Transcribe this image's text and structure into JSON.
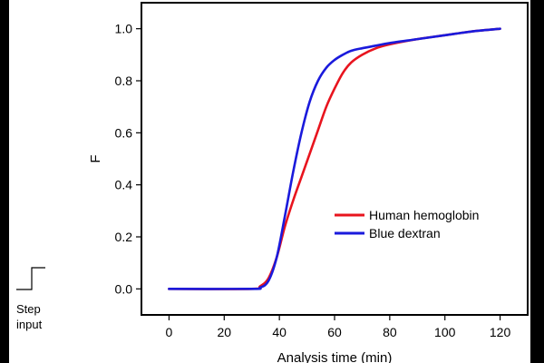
{
  "chart_data": {
    "type": "line",
    "title": "",
    "xlabel": "Analysis time (min)",
    "ylabel": "F",
    "xlim": [
      -10,
      130
    ],
    "ylim": [
      -0.1,
      1.1
    ],
    "xticks": [
      0,
      20,
      40,
      60,
      80,
      100,
      120
    ],
    "yticks": [
      0.0,
      0.2,
      0.4,
      0.6,
      0.8,
      1.0
    ],
    "xtick_labels": [
      "0",
      "20",
      "40",
      "60",
      "80",
      "100",
      "120"
    ],
    "ytick_labels": [
      "0.0",
      "0.2",
      "0.4",
      "0.6",
      "0.8",
      "1.0"
    ],
    "grid": false,
    "legend": "center-right",
    "series": [
      {
        "name": "Human hemoglobin",
        "color": "#e8141e",
        "x": [
          0,
          30,
          33,
          36,
          39,
          42,
          45,
          48,
          51,
          54,
          57,
          60,
          63,
          66,
          70,
          75,
          80,
          90,
          100,
          110,
          120
        ],
        "y": [
          0,
          0,
          0.01,
          0.04,
          0.12,
          0.24,
          0.34,
          0.43,
          0.52,
          0.61,
          0.7,
          0.77,
          0.83,
          0.87,
          0.9,
          0.925,
          0.94,
          0.96,
          0.975,
          0.99,
          1.0
        ]
      },
      {
        "name": "Blue dextran",
        "color": "#1a1adc",
        "x": [
          0,
          30,
          33,
          36,
          39,
          42,
          45,
          48,
          51,
          54,
          57,
          60,
          63,
          66,
          70,
          75,
          80,
          90,
          100,
          110,
          120
        ],
        "y": [
          0,
          0,
          0.005,
          0.03,
          0.12,
          0.28,
          0.45,
          0.6,
          0.72,
          0.8,
          0.85,
          0.88,
          0.9,
          0.915,
          0.925,
          0.935,
          0.945,
          0.96,
          0.975,
          0.99,
          1.0
        ]
      }
    ]
  },
  "step_annotation": {
    "line1": "Step",
    "line2": "input"
  }
}
